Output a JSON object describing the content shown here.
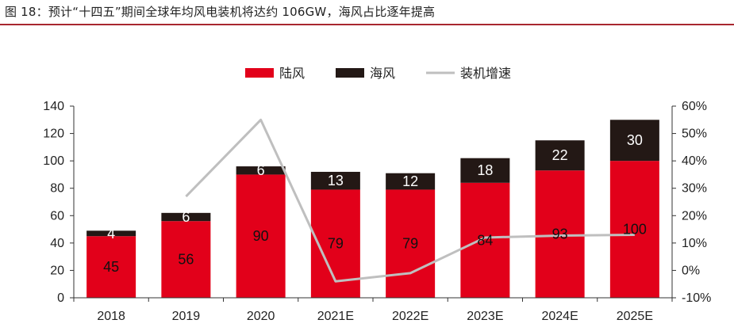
{
  "figure_title": "图 18：预计“十四五”期间全球年均风电装机将达约 106GW，海风占比逐年提高",
  "colors": {
    "onshore": "#e2001a",
    "offshore": "#231815",
    "growth": "#bfbfbf",
    "rule": "#a8272f"
  },
  "chart_data": {
    "type": "bar",
    "stacked": true,
    "categories": [
      "2018",
      "2019",
      "2020",
      "2021E",
      "2022E",
      "2023E",
      "2024E",
      "2025E"
    ],
    "series": [
      {
        "name": "陆风",
        "type": "bar",
        "axis": "left",
        "values": [
          45,
          56,
          90,
          79,
          79,
          84,
          93,
          100
        ]
      },
      {
        "name": "海风",
        "type": "bar",
        "axis": "left",
        "values": [
          4,
          6,
          6,
          13,
          12,
          18,
          22,
          30
        ]
      },
      {
        "name": "装机增速",
        "type": "line",
        "axis": "right",
        "values": [
          null,
          0.27,
          0.55,
          -0.04,
          -0.01,
          0.12,
          0.127,
          0.13
        ]
      }
    ],
    "ylim": [
      0,
      140
    ],
    "yticks": [
      0,
      20,
      40,
      60,
      80,
      100,
      120,
      140
    ],
    "y2lim": [
      -0.1,
      0.6
    ],
    "y2ticks": [
      "-10%",
      "0%",
      "10%",
      "20%",
      "30%",
      "40%",
      "50%",
      "60%"
    ],
    "legend_position": "top-center",
    "grid": false
  }
}
